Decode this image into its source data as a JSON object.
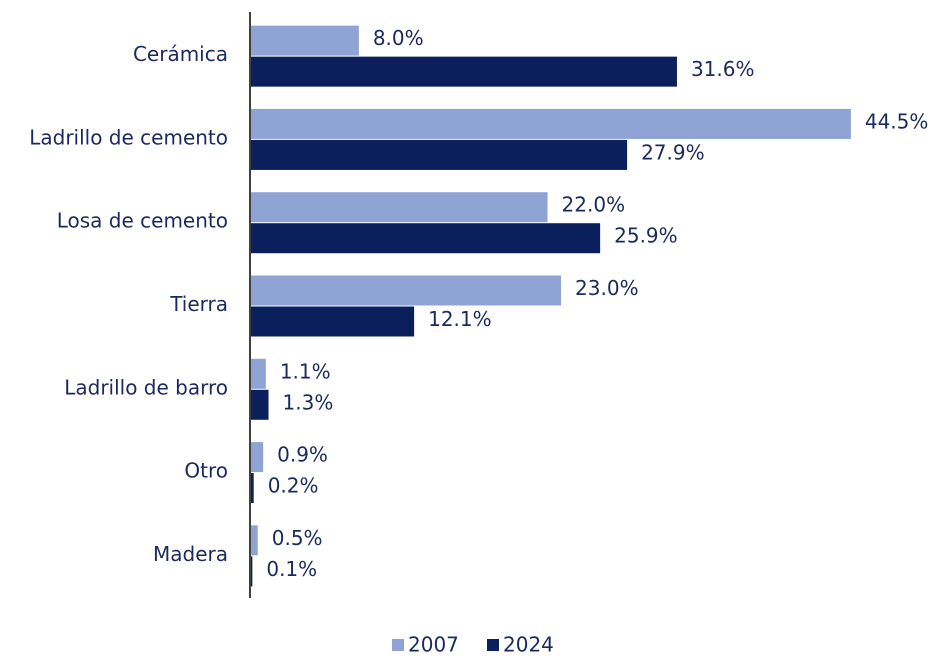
{
  "chart_data": {
    "type": "hbar",
    "categories": [
      "Cerámica",
      "Ladrillo de cemento",
      "Losa de cemento",
      "Tierra",
      "Ladrillo de barro",
      "Otro",
      "Madera"
    ],
    "series": [
      {
        "name": "2007",
        "color": "#8fa3d4",
        "values": [
          8.0,
          44.5,
          22.0,
          23.0,
          1.1,
          0.9,
          0.5
        ],
        "value_labels": [
          "8.0%",
          "44.5%",
          "22.0%",
          "23.0%",
          "1.1%",
          "0.9%",
          "0.5%"
        ]
      },
      {
        "name": "2024",
        "color": "#0b1f5c",
        "values": [
          31.6,
          27.9,
          25.9,
          12.1,
          1.3,
          0.2,
          0.1
        ],
        "value_labels": [
          "31.6%",
          "27.9%",
          "25.9%",
          "12.1%",
          "1.3%",
          "0.2%",
          "0.1%"
        ]
      }
    ],
    "xlim": [
      0,
      50
    ],
    "legend": "bottom"
  }
}
